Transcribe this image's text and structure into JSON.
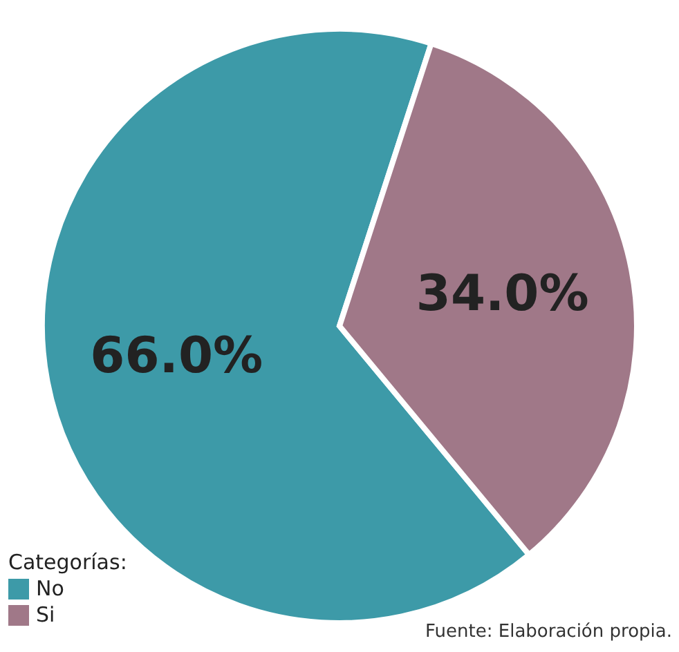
{
  "chart_data": {
    "type": "pie",
    "categories": [
      "No",
      "Si"
    ],
    "values": [
      66.0,
      34.0
    ],
    "value_labels": [
      "66.0%",
      "34.0%"
    ],
    "colors": [
      "#3d9aa8",
      "#a07888"
    ],
    "legend_title": "Categorías:",
    "legend": "bottom left",
    "annotations": [
      "Fuente: Elaboración propia."
    ]
  }
}
